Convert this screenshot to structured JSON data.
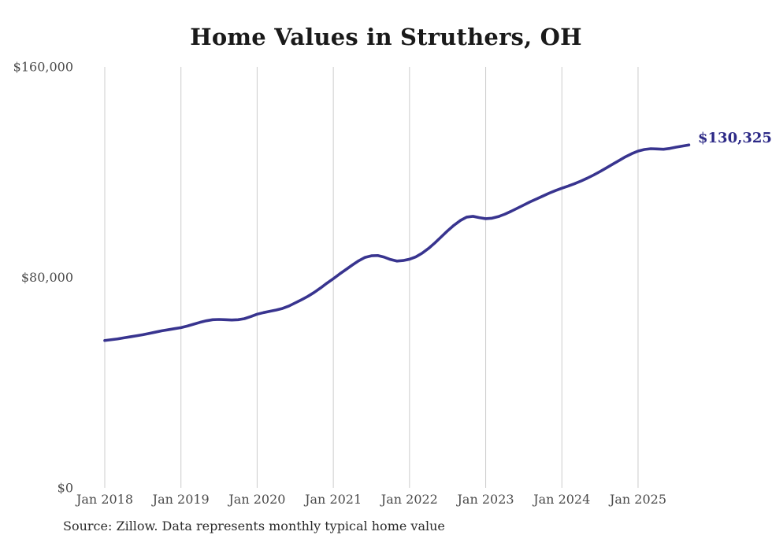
{
  "title": "Home Values in Struthers, OH",
  "source_note": "Source: Zillow. Data represents monthly typical home value",
  "end_label": "$130,325",
  "colors": {
    "background": "#ffffff",
    "line": "#38348f",
    "end_label": "#2d2a87",
    "gridline": "#cccccc",
    "tick_label": "#4a4a4a",
    "title": "#1a1a1a",
    "source": "#2b2b2b"
  },
  "chart_data": {
    "type": "line",
    "title": "Home Values in Struthers, OH",
    "xlabel": "",
    "ylabel": "",
    "ylim": [
      0,
      160000
    ],
    "grid": "vertical-only",
    "legend": "none",
    "x_frequency": "monthly",
    "x_start": "2018-01",
    "x_end": "2025-09",
    "x_tick_labels": [
      "Jan 2018",
      "Jan 2019",
      "Jan 2020",
      "Jan 2021",
      "Jan 2022",
      "Jan 2023",
      "Jan 2024",
      "Jan 2025"
    ],
    "y_ticks": [
      {
        "label": "$0",
        "value": 0
      },
      {
        "label": "$80,000",
        "value": 80000
      },
      {
        "label": "$160,000",
        "value": 160000
      }
    ],
    "final_value": 130325,
    "final_value_label": "$130,325",
    "series": [
      {
        "name": "Typical home value",
        "values": [
          56000,
          56300,
          56600,
          57000,
          57400,
          57800,
          58200,
          58700,
          59200,
          59700,
          60100,
          60500,
          60900,
          61500,
          62200,
          62900,
          63500,
          63900,
          64000,
          63900,
          63800,
          63900,
          64300,
          65100,
          66000,
          66600,
          67100,
          67600,
          68200,
          69100,
          70300,
          71500,
          72800,
          74300,
          76000,
          77800,
          79500,
          81300,
          83000,
          84700,
          86300,
          87600,
          88200,
          88300,
          87700,
          86800,
          86200,
          86400,
          86900,
          87800,
          89200,
          91000,
          93100,
          95400,
          97700,
          99800,
          101600,
          102900,
          103200,
          102700,
          102300,
          102500,
          103100,
          104000,
          105100,
          106300,
          107500,
          108700,
          109800,
          110900,
          112000,
          113000,
          113900,
          114700,
          115600,
          116600,
          117700,
          118900,
          120200,
          121600,
          123000,
          124400,
          125800,
          127000,
          128000,
          128600,
          128900,
          128800,
          128700,
          129000,
          129500,
          129900,
          130325
        ]
      }
    ]
  }
}
